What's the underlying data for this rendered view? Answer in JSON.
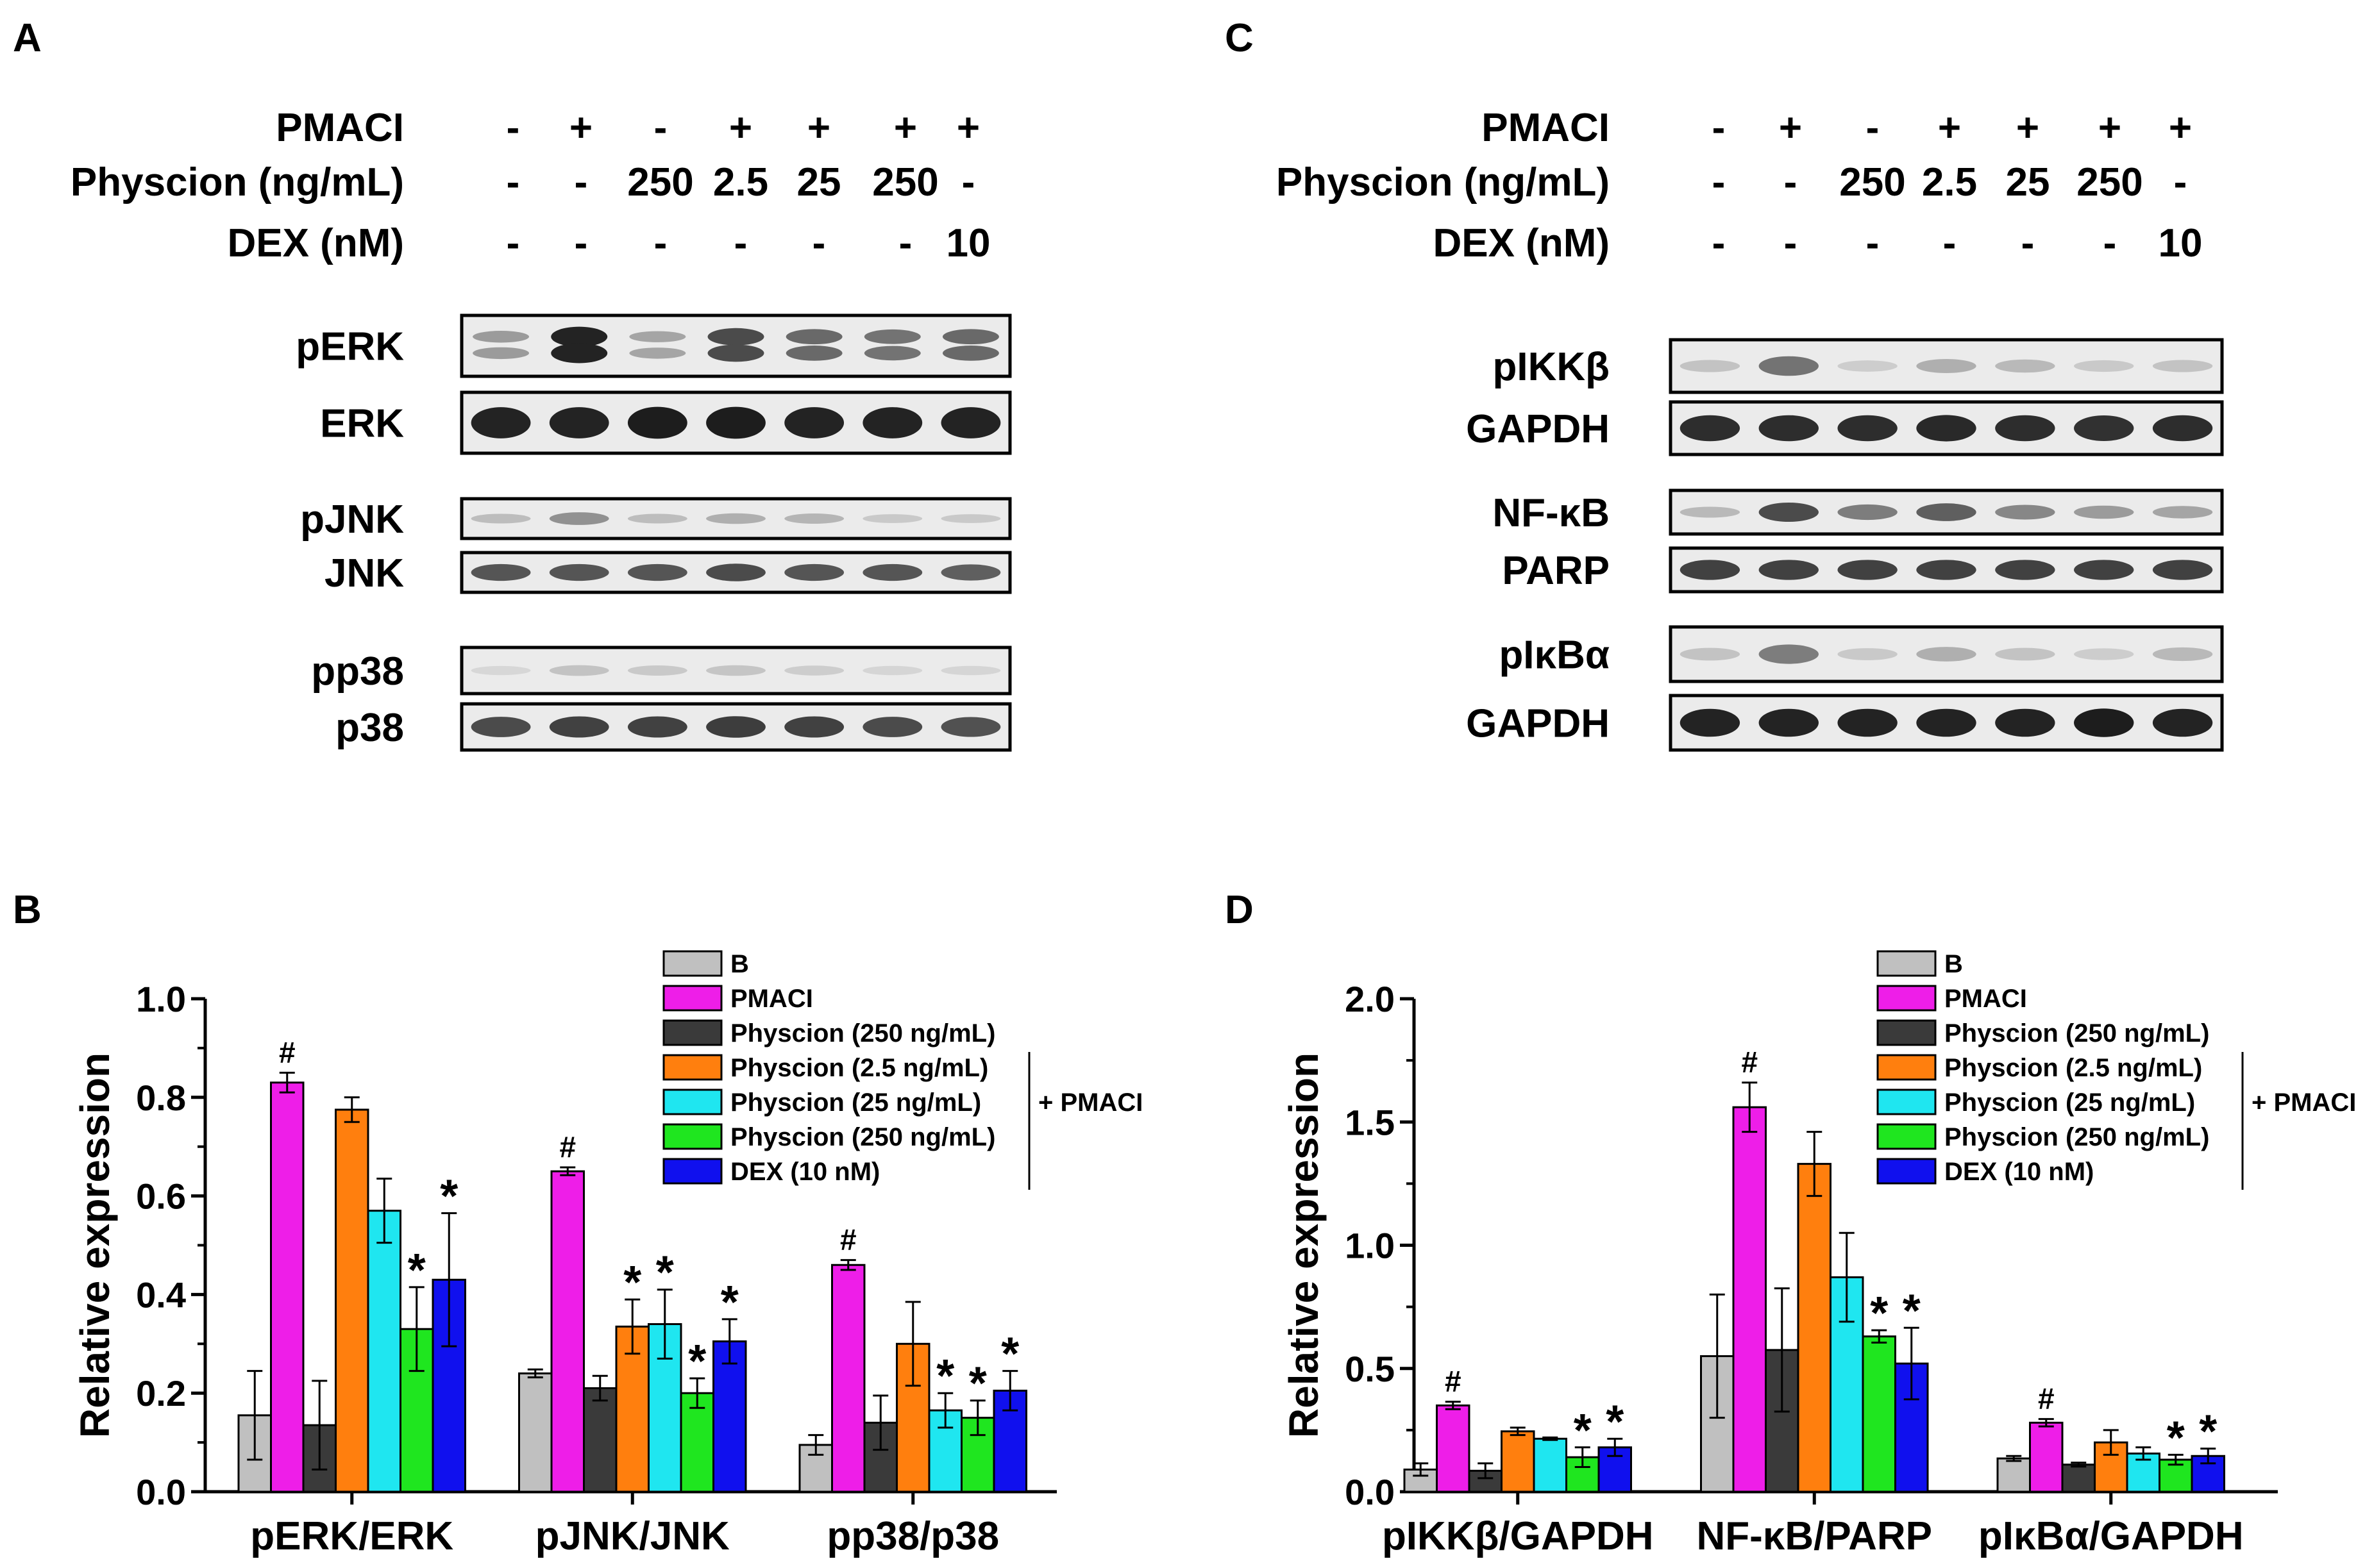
{
  "panels": {
    "A": "A",
    "B": "B",
    "C": "C",
    "D": "D"
  },
  "treatment_rows": {
    "left": [
      {
        "label": "PMACI",
        "values": [
          "-",
          "+",
          "-",
          "+",
          "+",
          "+",
          "+"
        ]
      },
      {
        "label": "Physcion (ng/mL)",
        "values": [
          "-",
          "-",
          "250",
          "2.5",
          "25",
          "250",
          "-"
        ]
      },
      {
        "label": "DEX (nM)",
        "values": [
          "-",
          "-",
          "-",
          "-",
          "-",
          "-",
          "10"
        ]
      }
    ],
    "right": [
      {
        "label": "PMACI",
        "values": [
          "-",
          "+",
          "-",
          "+",
          "+",
          "+",
          "+"
        ]
      },
      {
        "label": "Physcion (ng/mL)",
        "values": [
          "-",
          "-",
          "250",
          "2.5",
          "25",
          "250",
          "-"
        ]
      },
      {
        "label": "DEX (nM)",
        "values": [
          "-",
          "-",
          "-",
          "-",
          "-",
          "-",
          "10"
        ]
      }
    ]
  },
  "blots": {
    "left": [
      {
        "label": "pERK",
        "intensity": [
          0.35,
          0.95,
          0.3,
          0.75,
          0.6,
          0.55,
          0.6
        ],
        "double": true
      },
      {
        "label": "ERK",
        "intensity": [
          0.95,
          0.95,
          0.98,
          0.98,
          0.95,
          0.95,
          0.95
        ],
        "double": false
      },
      {
        "label": "pJNK",
        "intensity": [
          0.18,
          0.4,
          0.18,
          0.25,
          0.22,
          0.12,
          0.12
        ],
        "double": false
      },
      {
        "label": "JNK",
        "intensity": [
          0.7,
          0.7,
          0.7,
          0.75,
          0.7,
          0.7,
          0.65
        ],
        "double": false
      },
      {
        "label": "pp38",
        "intensity": [
          0.05,
          0.15,
          0.12,
          0.14,
          0.1,
          0.06,
          0.06
        ],
        "double": false
      },
      {
        "label": "p38",
        "intensity": [
          0.75,
          0.8,
          0.8,
          0.82,
          0.8,
          0.75,
          0.72
        ],
        "double": false
      }
    ],
    "right": [
      {
        "label": "pIKKβ",
        "intensity": [
          0.15,
          0.55,
          0.1,
          0.25,
          0.2,
          0.12,
          0.15
        ],
        "double": false
      },
      {
        "label": "GAPDH",
        "intensity": [
          0.9,
          0.9,
          0.9,
          0.92,
          0.9,
          0.88,
          0.9
        ],
        "double": false
      },
      {
        "label": "NF-κB",
        "intensity": [
          0.2,
          0.75,
          0.5,
          0.65,
          0.45,
          0.35,
          0.3
        ],
        "double": false
      },
      {
        "label": "PARP",
        "intensity": [
          0.8,
          0.8,
          0.8,
          0.8,
          0.8,
          0.8,
          0.8
        ],
        "double": false
      },
      {
        "label": "pIκBα",
        "intensity": [
          0.15,
          0.5,
          0.12,
          0.25,
          0.15,
          0.1,
          0.2
        ],
        "double": false
      },
      {
        "label": "GAPDH",
        "intensity": [
          0.95,
          0.95,
          0.95,
          0.95,
          0.95,
          0.98,
          0.95
        ],
        "double": false
      }
    ]
  },
  "legend": {
    "entries": [
      "B",
      "PMACI",
      "Physcion (250 ng/mL)",
      "Physcion (2.5 ng/mL)",
      "Physcion (25 ng/mL)",
      "Physcion (250 ng/mL)",
      "DEX (10 nM)"
    ],
    "bracket_label": "+ PMACI"
  },
  "colors": {
    "B": "#c0c0c0",
    "PMACI": "#ee1ee8",
    "Physcion250": "#3a3a3a",
    "Physcion2_5": "#ff7f0e",
    "Physcion25": "#1fe6f0",
    "Physcion250_pmaci": "#1fe61f",
    "DEX": "#1010ee"
  },
  "chart_data": [
    {
      "type": "bar",
      "panel": "B",
      "ylabel": "Relative expression",
      "ylim": [
        0,
        1.0
      ],
      "yticks": [
        "0.0",
        "0.2",
        "0.4",
        "0.6",
        "0.8",
        "1.0"
      ],
      "categories": [
        "pERK/ERK",
        "pJNK/JNK",
        "pp38/p38"
      ],
      "series": [
        {
          "name": "B",
          "values": [
            0.155,
            0.24,
            0.095
          ],
          "errors": [
            0.09,
            0.008,
            0.02
          ],
          "marks": [
            "",
            "",
            ""
          ]
        },
        {
          "name": "PMACI",
          "values": [
            0.83,
            0.65,
            0.46
          ],
          "errors": [
            0.02,
            0.008,
            0.01
          ],
          "marks": [
            "#",
            "#",
            "#"
          ]
        },
        {
          "name": "Physcion (250 ng/mL)",
          "values": [
            0.135,
            0.21,
            0.14
          ],
          "errors": [
            0.09,
            0.025,
            0.055
          ],
          "marks": [
            "",
            "",
            ""
          ]
        },
        {
          "name": "Physcion (2.5 ng/mL)",
          "values": [
            0.775,
            0.335,
            0.3
          ],
          "errors": [
            0.025,
            0.055,
            0.085
          ],
          "marks": [
            "",
            "*",
            ""
          ]
        },
        {
          "name": "Physcion (25 ng/mL)",
          "values": [
            0.57,
            0.34,
            0.165
          ],
          "errors": [
            0.065,
            0.07,
            0.035
          ],
          "marks": [
            "",
            "*",
            "*"
          ]
        },
        {
          "name": "Physcion (250 ng/mL)",
          "values": [
            0.33,
            0.2,
            0.15
          ],
          "errors": [
            0.085,
            0.03,
            0.035
          ],
          "marks": [
            "*",
            "*",
            "*"
          ]
        },
        {
          "name": "DEX (10 nM)",
          "values": [
            0.43,
            0.305,
            0.205
          ],
          "errors": [
            0.135,
            0.045,
            0.04
          ],
          "marks": [
            "*",
            "*",
            "*"
          ]
        }
      ]
    },
    {
      "type": "bar",
      "panel": "D",
      "ylabel": "Relative expression",
      "ylim": [
        0,
        2.0
      ],
      "yticks": [
        "0.0",
        "0.5",
        "1.0",
        "1.5",
        "2.0"
      ],
      "categories": [
        "pIKKβ/GAPDH",
        "NF-κB/PARP",
        "pIκBα/GAPDH"
      ],
      "series": [
        {
          "name": "B",
          "values": [
            0.09,
            0.55,
            0.135
          ],
          "errors": [
            0.025,
            0.25,
            0.01
          ],
          "marks": [
            "",
            "",
            ""
          ]
        },
        {
          "name": "PMACI",
          "values": [
            0.35,
            1.56,
            0.28
          ],
          "errors": [
            0.015,
            0.1,
            0.015
          ],
          "marks": [
            "#",
            "#",
            "#"
          ]
        },
        {
          "name": "Physcion (250 ng/mL)",
          "values": [
            0.085,
            0.575,
            0.11
          ],
          "errors": [
            0.03,
            0.25,
            0.008
          ],
          "marks": [
            "",
            "",
            ""
          ]
        },
        {
          "name": "Physcion (2.5 ng/mL)",
          "values": [
            0.245,
            1.33,
            0.2
          ],
          "errors": [
            0.015,
            0.13,
            0.05
          ],
          "marks": [
            "",
            "",
            ""
          ]
        },
        {
          "name": "Physcion (25 ng/mL)",
          "values": [
            0.215,
            0.87,
            0.155
          ],
          "errors": [
            0.005,
            0.18,
            0.025
          ],
          "marks": [
            "",
            "",
            ""
          ]
        },
        {
          "name": "Physcion (250 ng/mL)",
          "values": [
            0.14,
            0.63,
            0.13
          ],
          "errors": [
            0.04,
            0.025,
            0.02
          ],
          "marks": [
            "*",
            "*",
            "*"
          ]
        },
        {
          "name": "DEX (10 nM)",
          "values": [
            0.18,
            0.52,
            0.145
          ],
          "errors": [
            0.035,
            0.145,
            0.03
          ],
          "marks": [
            "*",
            "*",
            "*"
          ]
        }
      ]
    }
  ]
}
